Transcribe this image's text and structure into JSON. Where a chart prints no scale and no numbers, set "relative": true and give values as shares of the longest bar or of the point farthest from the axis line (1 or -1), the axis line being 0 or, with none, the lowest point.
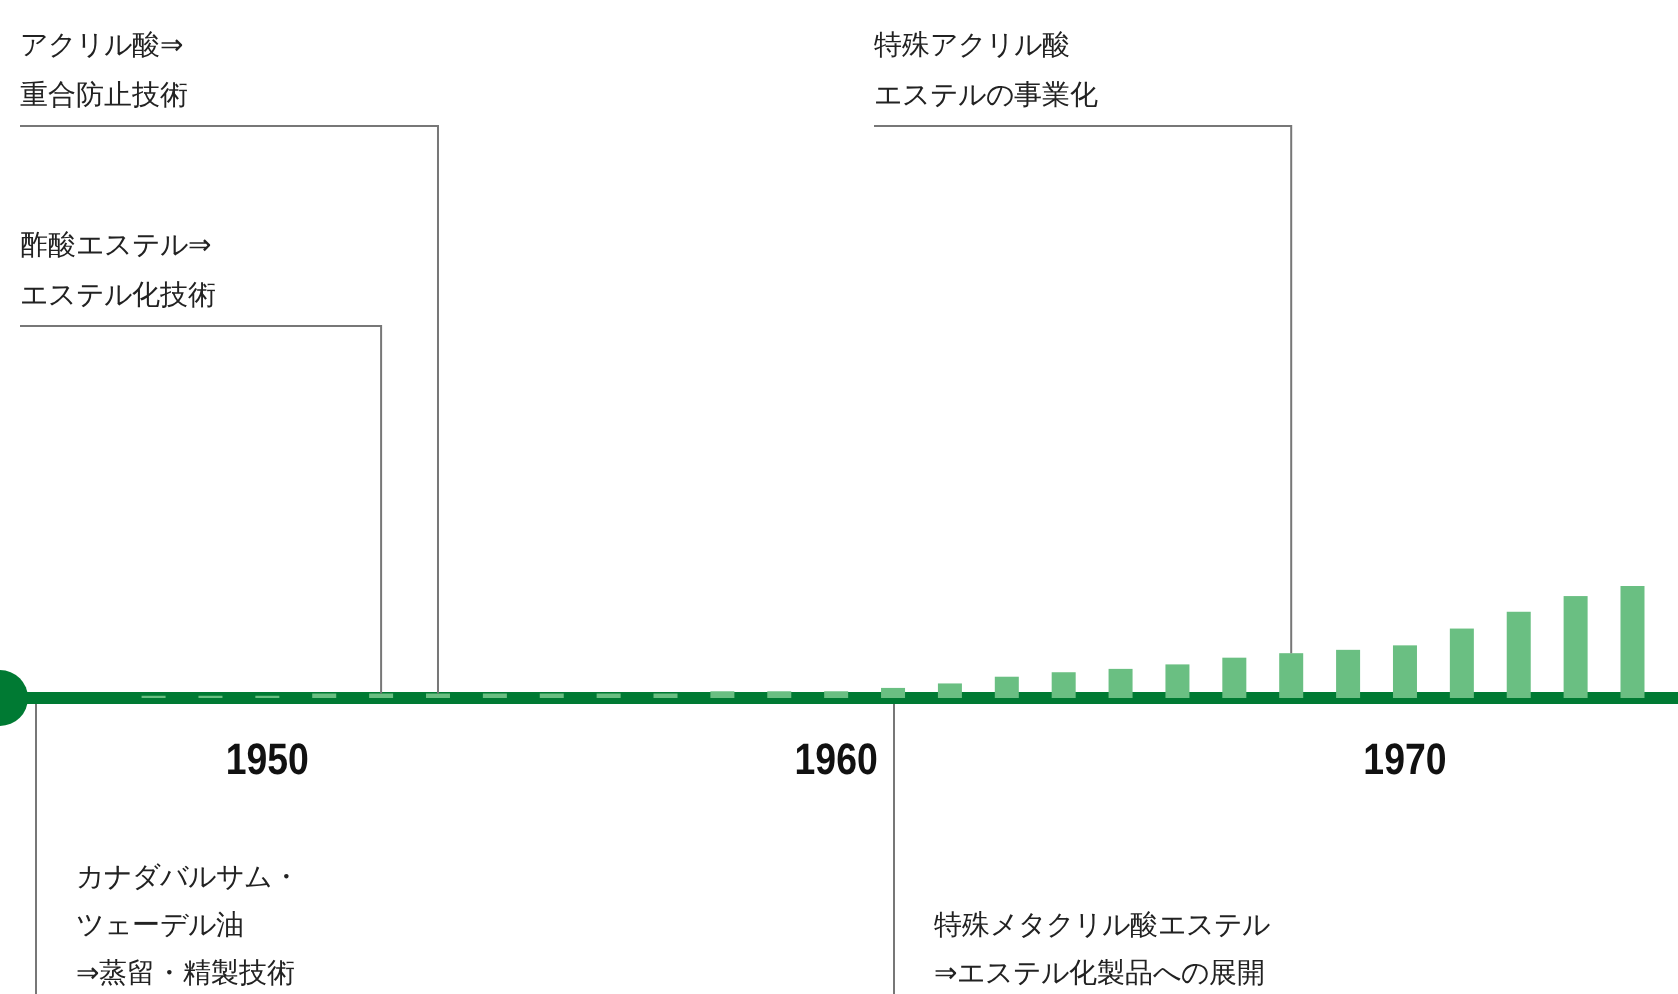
{
  "chart_data": {
    "type": "bar",
    "relative": true,
    "color": "#6abf82",
    "x": [
      1948,
      1949,
      1950,
      1951,
      1952,
      1953,
      1954,
      1955,
      1956,
      1957,
      1958,
      1959,
      1960,
      1961,
      1962,
      1963,
      1964,
      1965,
      1966,
      1967,
      1968,
      1969,
      1970,
      1971,
      1972,
      1973,
      1974
    ],
    "values": [
      0.02,
      0.02,
      0.02,
      0.04,
      0.04,
      0.04,
      0.04,
      0.04,
      0.04,
      0.04,
      0.06,
      0.06,
      0.06,
      0.09,
      0.13,
      0.19,
      0.23,
      0.26,
      0.3,
      0.36,
      0.4,
      0.43,
      0.47,
      0.62,
      0.77,
      0.91,
      1
    ],
    "xlim": [
      1945.3,
      1974.8
    ],
    "xticks": [
      1950,
      1960,
      1970
    ],
    "annotations": [
      {
        "text": "アクリル酸⇒重合防止技術",
        "x": 1953,
        "y": 0.04
      },
      {
        "text": "特殊アクリル酸エステルの事業化",
        "x": 1968,
        "y": 0.4
      },
      {
        "text": "酢酸エステル⇒エステル化技術",
        "x": 1952,
        "y": 0.04
      },
      "カナダバルサム・ツェーデル油⇒蒸留・精製技術",
      "特殊メタクリル酸エステル⇒エステル化製品への展開"
    ]
  }
}
